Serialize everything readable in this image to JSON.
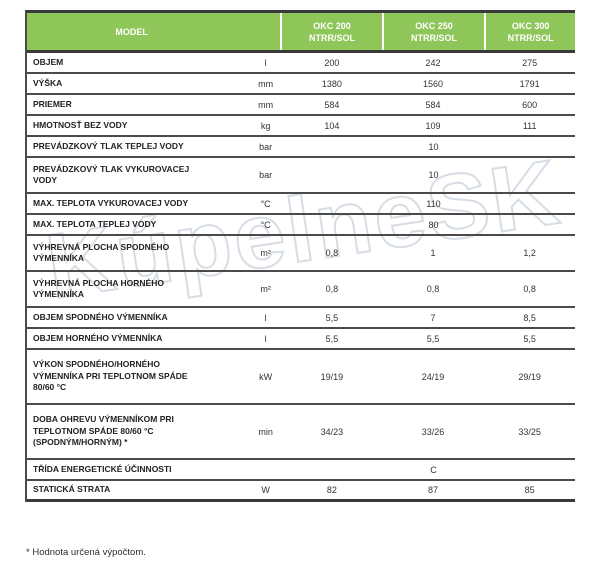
{
  "watermark": {
    "text": "KúpelneSK"
  },
  "table": {
    "header": {
      "model": "MODEL",
      "models": [
        {
          "name": "OKC 200",
          "variant": "NTRR/SOL"
        },
        {
          "name": "OKC 250",
          "variant": "NTRR/SOL"
        },
        {
          "name": "OKC 300",
          "variant": "NTRR/SOL"
        }
      ]
    },
    "rows": [
      {
        "lines": [
          "OBJEM"
        ],
        "unit": "l",
        "values": [
          "200",
          "242",
          "275"
        ]
      },
      {
        "lines": [
          "VÝŠKA"
        ],
        "unit": "mm",
        "values": [
          "1380",
          "1560",
          "1791"
        ]
      },
      {
        "lines": [
          "PRIEMER"
        ],
        "unit": "mm",
        "values": [
          "584",
          "584",
          "600"
        ]
      },
      {
        "lines": [
          "HMOTNOSŤ BEZ VODY"
        ],
        "unit": "kg",
        "values": [
          "104",
          "109",
          "111"
        ]
      },
      {
        "lines": [
          "PREVÁDZKOVÝ TLAK TEPLEJ VODY"
        ],
        "unit": "bar",
        "span": "10"
      },
      {
        "lines": [
          "PREVÁDZKOVÝ TLAK VYKUROVACEJ",
          "VODY"
        ],
        "unit": "bar",
        "span": "10"
      },
      {
        "lines": [
          "MAX. TEPLOTA VYKUROVACEJ VODY"
        ],
        "unit": "°C",
        "span": "110"
      },
      {
        "lines": [
          "MAX. TEPLOTA TEPLEJ VODY"
        ],
        "unit": "°C",
        "span": "80"
      },
      {
        "lines": [
          "VÝHREVNÁ PLOCHA SPODNÉHO",
          "VÝMENNÍKA"
        ],
        "unit": "m²",
        "values": [
          "0,8",
          "1",
          "1,2"
        ]
      },
      {
        "lines": [
          "VÝHREVNÁ PLOCHA HORNÉHO",
          "VÝMENNÍKA"
        ],
        "unit": "m²",
        "values": [
          "0,8",
          "0,8",
          "0,8"
        ]
      },
      {
        "lines": [
          "OBJEM SPODNÉHO VÝMENNÍKA"
        ],
        "unit": "l",
        "values": [
          "5,5",
          "7",
          "8,5"
        ]
      },
      {
        "lines": [
          "OBJEM HORNÉHO VÝMENNÍKA"
        ],
        "unit": "l",
        "values": [
          "5,5",
          "5,5",
          "5,5"
        ]
      },
      {
        "lines": [
          "VÝKON SPODNÉHO/HORNÉHO",
          "VÝMENNÍKA PRI TEPLOTNOM SPÁDE",
          "80/60 °C"
        ],
        "unit": "kW",
        "values": [
          "19/19",
          "24/19",
          "29/19"
        ]
      },
      {
        "lines": [
          "DOBA OHREVU VÝMENNÍKOM PRI",
          "TEPLOTNOM SPÁDE 80/60 °C",
          "(SPODNÝM/HORNÝM) *"
        ],
        "unit": "min",
        "values": [
          "34/23",
          "33/26",
          "33/25"
        ]
      },
      {
        "lines": [
          "TŘÍDA ENERGETICKÉ ÚČINNOSTI"
        ],
        "unit": "",
        "span": "C"
      },
      {
        "lines": [
          "STATICKÁ STRATA"
        ],
        "unit": "W",
        "values": [
          "82",
          "87",
          "85"
        ]
      }
    ],
    "footnote": "* Hodnota určená výpočtom."
  },
  "colors": {
    "header_green": "#8fc65a",
    "header_text": "#ffffff",
    "border_dark": "#3a3a3a",
    "border_row": "#4a4a4a",
    "label_text": "#222222",
    "value_text": "#333333",
    "watermark_outline": "#d7dde4"
  }
}
